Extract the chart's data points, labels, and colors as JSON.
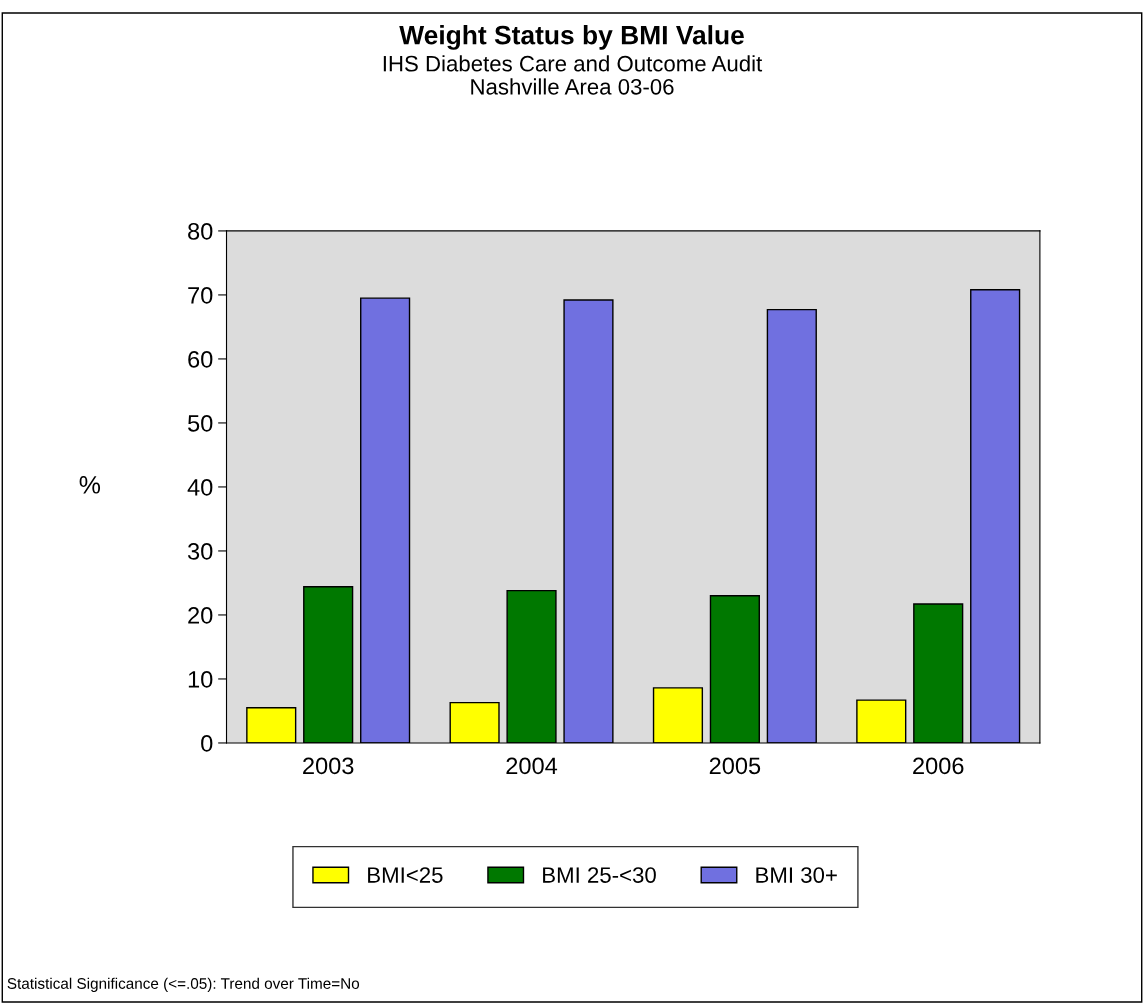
{
  "chart_data": {
    "type": "bar",
    "title": "Weight Status by BMI Value",
    "subtitle": "IHS Diabetes Care and Outcome Audit\nNashville Area 03-06",
    "ylabel": "%",
    "categories": [
      "2003",
      "2004",
      "2005",
      "2006"
    ],
    "series": [
      {
        "name": "BMI<25",
        "color": "#ffff00",
        "values": [
          5.5,
          6.3,
          8.6,
          6.7
        ]
      },
      {
        "name": "BMI 25-<30",
        "color": "#007800",
        "values": [
          24.4,
          23.8,
          23.0,
          21.7
        ]
      },
      {
        "name": "BMI 30+",
        "color": "#7070e0",
        "values": [
          69.5,
          69.2,
          67.7,
          70.8
        ]
      }
    ],
    "ylim": [
      0,
      80
    ],
    "yticks": [
      0,
      10,
      20,
      30,
      40,
      50,
      60,
      70,
      80
    ],
    "grid": false,
    "legend": "bottom",
    "annotations": [
      "Statistical Significance (<=.05): Trend over Time=No"
    ]
  }
}
